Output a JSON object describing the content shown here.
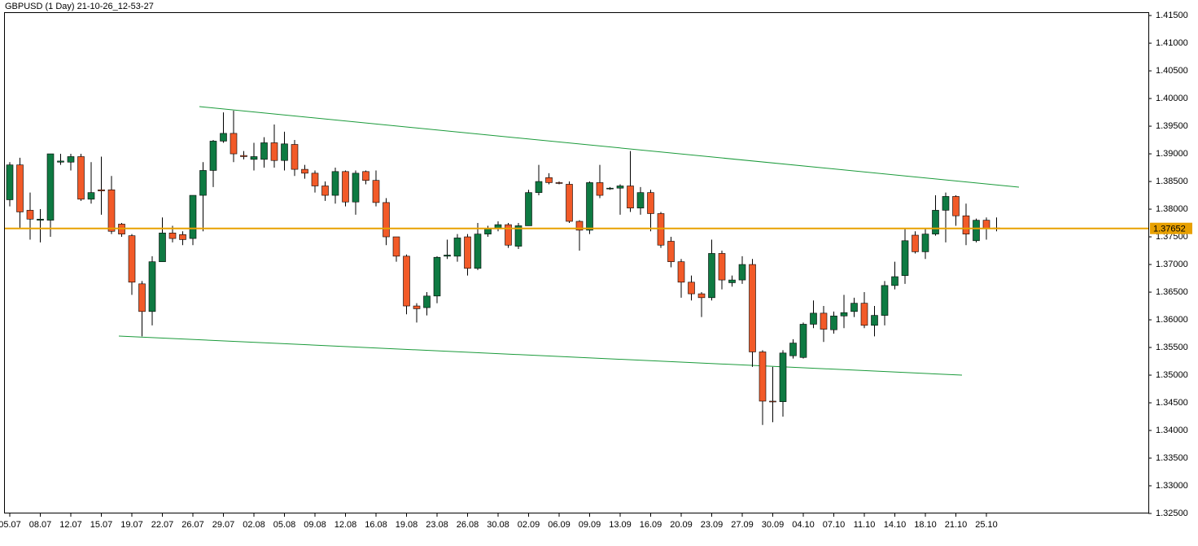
{
  "chart_data": {
    "type": "candlestick",
    "title": "GBPUSD (1 Day) 21-10-26_12-53-27",
    "categories": [
      "05.07",
      null,
      null,
      "08.07",
      null,
      null,
      "12.07",
      null,
      null,
      "15.07",
      null,
      null,
      "19.07",
      null,
      null,
      "22.07",
      null,
      null,
      "26.07",
      null,
      null,
      "29.07",
      null,
      null,
      "02.08",
      null,
      null,
      "05.08",
      null,
      null,
      "09.08",
      null,
      null,
      "12.08",
      null,
      null,
      "16.08",
      null,
      null,
      "19.08",
      null,
      null,
      "23.08",
      null,
      null,
      "26.08",
      null,
      null,
      "30.08",
      null,
      null,
      "02.09",
      null,
      null,
      "06.09",
      null,
      null,
      "09.09",
      null,
      null,
      "13.09",
      null,
      null,
      "16.09",
      null,
      null,
      "20.09",
      null,
      null,
      "23.09",
      null,
      null,
      "27.09",
      null,
      null,
      "30.09",
      null,
      null,
      "04.10",
      null,
      null,
      "07.10",
      null,
      null,
      "11.10",
      null,
      null,
      "14.10",
      null,
      null,
      "18.10",
      null,
      null,
      "21.10",
      null,
      null,
      "25.10",
      null
    ],
    "open": [
      1.3817,
      1.388,
      1.3798,
      1.378,
      1.378,
      1.3885,
      1.3885,
      1.3895,
      1.3818,
      1.3835,
      1.3835,
      1.3773,
      1.3752,
      1.3665,
      1.3615,
      1.3705,
      1.3757,
      1.3754,
      1.3747,
      1.3825,
      1.387,
      1.3923,
      1.3937,
      1.3897,
      1.389,
      1.389,
      1.392,
      1.3888,
      1.3917,
      1.3872,
      1.3865,
      1.3842,
      1.3825,
      1.3868,
      1.3813,
      1.3868,
      1.3852,
      1.3812,
      1.375,
      1.3715,
      1.3625,
      1.3622,
      1.3643,
      1.3715,
      1.3715,
      1.375,
      1.3693,
      1.3755,
      1.3765,
      1.3772,
      1.3733,
      1.377,
      1.383,
      1.3857,
      1.3848,
      1.3845,
      1.3778,
      1.3762,
      1.3848,
      1.3838,
      1.3838,
      1.3842,
      1.3802,
      1.383,
      1.3792,
      1.3742,
      1.3705,
      1.3668,
      1.3647,
      1.364,
      1.372,
      1.3667,
      1.3672,
      1.37,
      1.3542,
      1.3453,
      1.3452,
      1.3535,
      1.3532,
      1.3592,
      1.3612,
      1.3582,
      1.3607,
      1.3615,
      1.363,
      1.359,
      1.3608,
      1.3662,
      1.368,
      1.3753,
      1.3723,
      1.3755,
      1.3798,
      1.3823,
      1.3788,
      1.3743,
      1.378,
      1.3765
    ],
    "high": [
      1.3885,
      1.3893,
      1.383,
      1.38,
      1.39,
      1.39,
      1.39,
      1.39,
      1.3885,
      1.3895,
      1.386,
      1.3775,
      1.3755,
      1.367,
      1.3715,
      1.3785,
      1.377,
      1.376,
      1.3825,
      1.3885,
      1.3925,
      1.3975,
      1.3978,
      1.3905,
      1.392,
      1.393,
      1.3953,
      1.394,
      1.3925,
      1.388,
      1.387,
      1.385,
      1.3875,
      1.387,
      1.387,
      1.387,
      1.387,
      1.382,
      1.375,
      1.3718,
      1.363,
      1.365,
      1.3715,
      1.3745,
      1.3755,
      1.3755,
      1.3775,
      1.377,
      1.3778,
      1.3775,
      1.3775,
      1.3835,
      1.388,
      1.3865,
      1.385,
      1.385,
      1.378,
      1.385,
      1.388,
      1.384,
      1.3845,
      1.3905,
      1.384,
      1.3835,
      1.3795,
      1.375,
      1.371,
      1.368,
      1.365,
      1.3745,
      1.3725,
      1.368,
      1.3715,
      1.371,
      1.3545,
      1.3515,
      1.3545,
      1.3565,
      1.3595,
      1.3635,
      1.3625,
      1.3615,
      1.3645,
      1.364,
      1.365,
      1.3625,
      1.367,
      1.3705,
      1.3765,
      1.376,
      1.3765,
      1.3825,
      1.383,
      1.3825,
      1.381,
      1.3783,
      1.3785,
      1.3785
    ],
    "low": [
      1.3805,
      1.3765,
      1.3745,
      1.374,
      1.375,
      1.388,
      1.387,
      1.3815,
      1.381,
      1.379,
      1.3755,
      1.375,
      1.3645,
      1.357,
      1.359,
      1.3705,
      1.374,
      1.3735,
      1.3735,
      1.376,
      1.384,
      1.392,
      1.3885,
      1.389,
      1.387,
      1.3875,
      1.3875,
      1.387,
      1.386,
      1.3855,
      1.383,
      1.3815,
      1.381,
      1.3805,
      1.379,
      1.3845,
      1.3805,
      1.3735,
      1.3705,
      1.361,
      1.3595,
      1.3608,
      1.363,
      1.371,
      1.3705,
      1.368,
      1.369,
      1.375,
      1.376,
      1.373,
      1.3728,
      1.377,
      1.3825,
      1.3845,
      1.3845,
      1.3775,
      1.3725,
      1.3755,
      1.382,
      1.3835,
      1.379,
      1.3795,
      1.379,
      1.376,
      1.373,
      1.3695,
      1.364,
      1.3635,
      1.3605,
      1.3635,
      1.3655,
      1.366,
      1.3665,
      1.3515,
      1.341,
      1.3415,
      1.3425,
      1.353,
      1.353,
      1.3585,
      1.356,
      1.3575,
      1.3585,
      1.3605,
      1.3585,
      1.357,
      1.359,
      1.3655,
      1.3665,
      1.372,
      1.371,
      1.3752,
      1.374,
      1.377,
      1.3735,
      1.374,
      1.3745,
      1.376
    ],
    "close": [
      1.388,
      1.3795,
      1.3782,
      1.3782,
      1.39,
      1.3887,
      1.3895,
      1.3818,
      1.383,
      1.3833,
      1.376,
      1.3755,
      1.3668,
      1.3615,
      1.3705,
      1.3757,
      1.3747,
      1.3745,
      1.3825,
      1.387,
      1.3923,
      1.3937,
      1.39,
      1.3895,
      1.3895,
      1.392,
      1.3888,
      1.3918,
      1.3872,
      1.3865,
      1.3842,
      1.3825,
      1.3868,
      1.3813,
      1.3865,
      1.3852,
      1.3812,
      1.375,
      1.3715,
      1.3625,
      1.362,
      1.3643,
      1.3713,
      1.3717,
      1.3748,
      1.3693,
      1.3755,
      1.3765,
      1.3772,
      1.3735,
      1.377,
      1.383,
      1.385,
      1.3848,
      1.3847,
      1.3778,
      1.3762,
      1.3848,
      1.3825,
      1.3838,
      1.3842,
      1.3802,
      1.383,
      1.3792,
      1.3735,
      1.3705,
      1.3668,
      1.3647,
      1.364,
      1.372,
      1.3672,
      1.3672,
      1.37,
      1.3542,
      1.3453,
      1.3452,
      1.354,
      1.3558,
      1.3592,
      1.3612,
      1.3583,
      1.3607,
      1.3613,
      1.363,
      1.359,
      1.3608,
      1.3662,
      1.3678,
      1.3743,
      1.3723,
      1.3755,
      1.3798,
      1.3823,
      1.3788,
      1.3755,
      1.378,
      1.3765,
      1.3766
    ],
    "up_color": "#0e7a42",
    "down_color": "#f25a28",
    "current_price": {
      "value": 1.37652,
      "label": "1.37652"
    },
    "current_price_color": "#e8a000",
    "ylim": [
      1.325,
      1.4156
    ],
    "yticks": [
      {
        "value": 1.415,
        "label": "1.41500"
      },
      {
        "value": 1.41,
        "label": "1.41000"
      },
      {
        "value": 1.405,
        "label": "1.40500"
      },
      {
        "value": 1.4,
        "label": "1.40000"
      },
      {
        "value": 1.395,
        "label": "1.39500"
      },
      {
        "value": 1.39,
        "label": "1.39000"
      },
      {
        "value": 1.385,
        "label": "1.38500"
      },
      {
        "value": 1.38,
        "label": "1.38000"
      },
      {
        "value": 1.375,
        "label": "1.37500"
      },
      {
        "value": 1.37,
        "label": "1.37000"
      },
      {
        "value": 1.365,
        "label": "1.36500"
      },
      {
        "value": 1.36,
        "label": "1.36000"
      },
      {
        "value": 1.355,
        "label": "1.35500"
      },
      {
        "value": 1.35,
        "label": "1.35000"
      },
      {
        "value": 1.345,
        "label": "1.34500"
      },
      {
        "value": 1.34,
        "label": "1.34000"
      },
      {
        "value": 1.335,
        "label": "1.33500"
      },
      {
        "value": 1.33,
        "label": "1.33000"
      },
      {
        "value": 1.325,
        "label": "1.32500"
      }
    ]
  }
}
